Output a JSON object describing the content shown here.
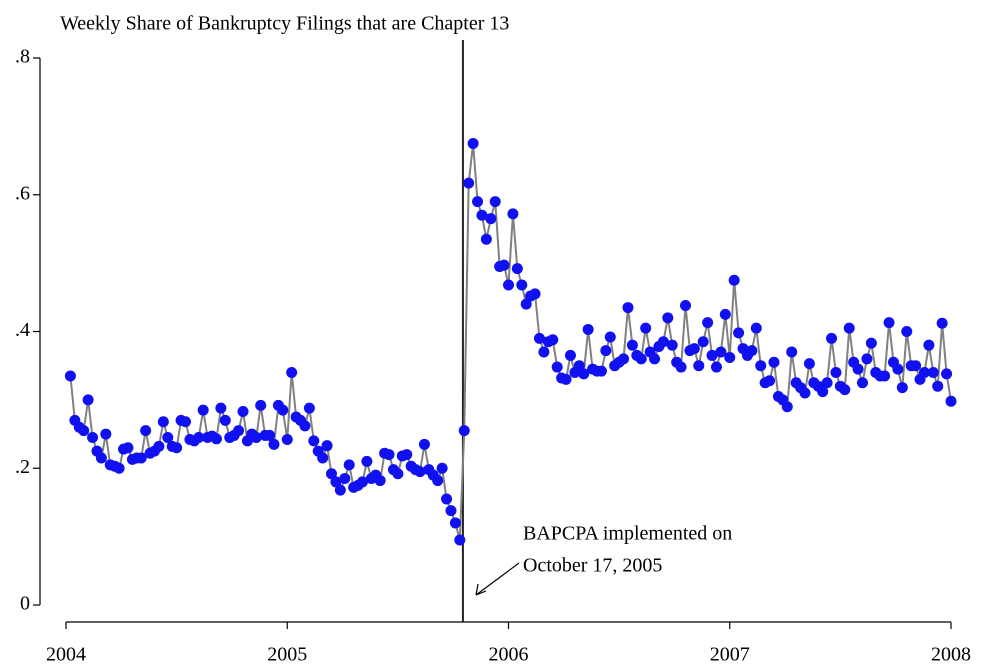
{
  "chart_data": {
    "type": "line",
    "title": "Weekly Share of Bankruptcy Filings that are Chapter 13",
    "annotation": [
      "BAPCPA implemented on",
      "October 17, 2005"
    ],
    "vline_x": 2005.794,
    "xlim": [
      2004,
      2008
    ],
    "xticks": [
      2004,
      2005,
      2006,
      2007,
      2008
    ],
    "ylim": [
      0,
      0.8
    ],
    "yticks": [
      0,
      {
        "value": 0.2,
        "label": ".2"
      },
      {
        "value": 0.4,
        "label": ".4"
      },
      {
        "value": 0.6,
        "label": ".6"
      },
      {
        "value": 0.8,
        "label": ".8"
      }
    ],
    "line_color": "#808080",
    "marker_color": "#1010f0",
    "x": [
      2004.02,
      2004.04,
      2004.06,
      2004.08,
      2004.1,
      2004.12,
      2004.14,
      2004.16,
      2004.18,
      2004.2,
      2004.22,
      2004.24,
      2004.26,
      2004.28,
      2004.3,
      2004.32,
      2004.34,
      2004.36,
      2004.38,
      2004.4,
      2004.42,
      2004.44,
      2004.46,
      2004.48,
      2004.5,
      2004.52,
      2004.54,
      2004.56,
      2004.58,
      2004.6,
      2004.62,
      2004.64,
      2004.66,
      2004.68,
      2004.7,
      2004.72,
      2004.74,
      2004.76,
      2004.78,
      2004.8,
      2004.82,
      2004.84,
      2004.86,
      2004.88,
      2004.9,
      2004.92,
      2004.94,
      2004.96,
      2004.98,
      2005,
      2005.02,
      2005.04,
      2005.06,
      2005.08,
      2005.1,
      2005.12,
      2005.14,
      2005.16,
      2005.18,
      2005.2,
      2005.22,
      2005.24,
      2005.26,
      2005.28,
      2005.3,
      2005.32,
      2005.34,
      2005.36,
      2005.38,
      2005.4,
      2005.42,
      2005.44,
      2005.46,
      2005.48,
      2005.5,
      2005.52,
      2005.54,
      2005.56,
      2005.58,
      2005.6,
      2005.62,
      2005.64,
      2005.66,
      2005.68,
      2005.7,
      2005.72,
      2005.74,
      2005.76,
      2005.78,
      2005.8,
      2005.82,
      2005.84,
      2005.86,
      2005.88,
      2005.9,
      2005.92,
      2005.94,
      2005.96,
      2005.98,
      2006,
      2006.02,
      2006.04,
      2006.06,
      2006.08,
      2006.1,
      2006.12,
      2006.14,
      2006.16,
      2006.18,
      2006.2,
      2006.22,
      2006.24,
      2006.26,
      2006.28,
      2006.3,
      2006.32,
      2006.34,
      2006.36,
      2006.38,
      2006.4,
      2006.42,
      2006.44,
      2006.46,
      2006.48,
      2006.5,
      2006.52,
      2006.54,
      2006.56,
      2006.58,
      2006.6,
      2006.62,
      2006.64,
      2006.66,
      2006.68,
      2006.7,
      2006.72,
      2006.74,
      2006.76,
      2006.78,
      2006.8,
      2006.82,
      2006.84,
      2006.86,
      2006.88,
      2006.9,
      2006.92,
      2006.94,
      2006.96,
      2006.98,
      2007,
      2007.02,
      2007.04,
      2007.06,
      2007.08,
      2007.1,
      2007.12,
      2007.14,
      2007.16,
      2007.18,
      2007.2,
      2007.22,
      2007.24,
      2007.26,
      2007.28,
      2007.3,
      2007.32,
      2007.34,
      2007.36,
      2007.38,
      2007.4,
      2007.42,
      2007.44,
      2007.46,
      2007.48,
      2007.5,
      2007.52,
      2007.54,
      2007.56,
      2007.58,
      2007.6,
      2007.62,
      2007.64,
      2007.66,
      2007.68,
      2007.7,
      2007.72,
      2007.74,
      2007.76,
      2007.78,
      2007.8,
      2007.82,
      2007.84,
      2007.86,
      2007.88,
      2007.9,
      2007.92,
      2007.94,
      2007.96,
      2007.98,
      2008
    ],
    "values": [
      0.335,
      0.27,
      0.26,
      0.255,
      0.3,
      0.245,
      0.225,
      0.215,
      0.25,
      0.205,
      0.203,
      0.2,
      0.228,
      0.23,
      0.213,
      0.215,
      0.215,
      0.255,
      0.222,
      0.225,
      0.232,
      0.268,
      0.245,
      0.232,
      0.23,
      0.27,
      0.268,
      0.242,
      0.24,
      0.245,
      0.285,
      0.245,
      0.247,
      0.243,
      0.288,
      0.27,
      0.245,
      0.248,
      0.255,
      0.283,
      0.24,
      0.25,
      0.245,
      0.292,
      0.248,
      0.248,
      0.235,
      0.292,
      0.285,
      0.242,
      0.34,
      0.275,
      0.27,
      0.262,
      0.288,
      0.24,
      0.225,
      0.215,
      0.233,
      0.192,
      0.18,
      0.168,
      0.185,
      0.205,
      0.172,
      0.175,
      0.18,
      0.21,
      0.185,
      0.19,
      0.182,
      0.222,
      0.22,
      0.198,
      0.192,
      0.218,
      0.22,
      0.203,
      0.198,
      0.195,
      0.235,
      0.198,
      0.19,
      0.182,
      0.2,
      0.155,
      0.138,
      0.12,
      0.095,
      0.255,
      0.617,
      0.675,
      0.59,
      0.57,
      0.535,
      0.565,
      0.59,
      0.495,
      0.497,
      0.468,
      0.572,
      0.492,
      0.468,
      0.44,
      0.452,
      0.455,
      0.39,
      0.37,
      0.385,
      0.388,
      0.348,
      0.332,
      0.33,
      0.365,
      0.34,
      0.35,
      0.338,
      0.403,
      0.345,
      0.342,
      0.342,
      0.372,
      0.392,
      0.35,
      0.355,
      0.36,
      0.435,
      0.38,
      0.365,
      0.36,
      0.405,
      0.37,
      0.36,
      0.378,
      0.385,
      0.42,
      0.38,
      0.355,
      0.348,
      0.438,
      0.372,
      0.375,
      0.35,
      0.385,
      0.413,
      0.365,
      0.348,
      0.37,
      0.425,
      0.362,
      0.475,
      0.398,
      0.375,
      0.365,
      0.372,
      0.405,
      0.35,
      0.325,
      0.328,
      0.355,
      0.305,
      0.3,
      0.29,
      0.37,
      0.325,
      0.318,
      0.31,
      0.353,
      0.325,
      0.32,
      0.312,
      0.325,
      0.39,
      0.34,
      0.32,
      0.315,
      0.405,
      0.355,
      0.345,
      0.325,
      0.36,
      0.383,
      0.34,
      0.335,
      0.335,
      0.413,
      0.355,
      0.345,
      0.318,
      0.4,
      0.35,
      0.35,
      0.33,
      0.34,
      0.38,
      0.34,
      0.32,
      0.412,
      0.338,
      0.298
    ]
  }
}
